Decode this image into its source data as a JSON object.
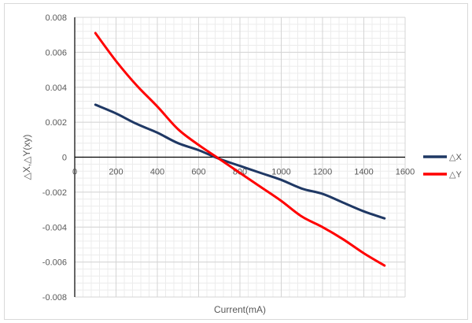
{
  "chart_data": {
    "type": "line",
    "title": "",
    "xlabel": "Current(mA)",
    "ylabel": "△X,△Y(xy)",
    "xlim": [
      0,
      1600
    ],
    "ylim": [
      -0.008,
      0.008
    ],
    "x_ticks": [
      0,
      200,
      400,
      600,
      800,
      1000,
      1200,
      1400,
      1600
    ],
    "x_tick_labels": [
      "0",
      "200",
      "400",
      "600",
      "800",
      "1000",
      "1200",
      "1400",
      "1600"
    ],
    "y_ticks": [
      0.008,
      0.006,
      0.004,
      0.002,
      0,
      -0.002,
      -0.004,
      -0.006,
      -0.008
    ],
    "y_tick_labels": [
      "0.008",
      "0.006",
      "0.004",
      "0.002",
      "0",
      "-0.002",
      "-0.004",
      "-0.006",
      "-0.008"
    ],
    "grid": true,
    "minor_grid": true,
    "legend_position": "right",
    "x": [
      100,
      200,
      300,
      400,
      500,
      600,
      700,
      800,
      900,
      1000,
      1100,
      1200,
      1300,
      1400,
      1500
    ],
    "series": [
      {
        "name": "△X",
        "color": "#1f3864",
        "values": [
          0.003,
          0.0025,
          0.0019,
          0.0014,
          0.0008,
          0.0004,
          -0.0001,
          -0.0005,
          -0.0009,
          -0.0013,
          -0.0018,
          -0.0021,
          -0.0026,
          -0.0031,
          -0.0035
        ]
      },
      {
        "name": "△Y",
        "color": "#ff0000",
        "values": [
          0.0071,
          0.0055,
          0.0041,
          0.0029,
          0.0016,
          0.0007,
          -0.0001,
          -0.0009,
          -0.0017,
          -0.0025,
          -0.0034,
          -0.004,
          -0.0047,
          -0.0055,
          -0.0062
        ]
      }
    ]
  }
}
